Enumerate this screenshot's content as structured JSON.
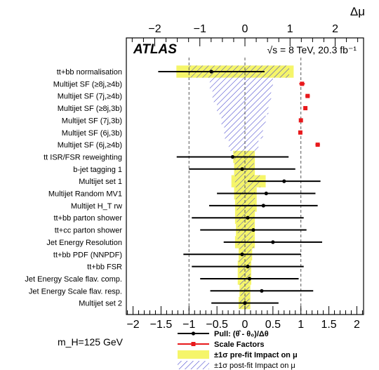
{
  "chart_data": {
    "type": "tornado",
    "experiment": "ATLAS",
    "energy_label": "√s = 8 TeV, 20.3 fb⁻¹",
    "top_axis_label": "Δμ",
    "mass_label": "m_H=125 GeV",
    "x_range": [
      -2.12,
      2.12
    ],
    "x_ticks": [
      -2,
      -1.5,
      -1,
      -0.5,
      0,
      0.5,
      1,
      1.5,
      2
    ],
    "x_tick_labels": [
      "−2",
      "−1.5",
      "−1",
      "−0.5",
      "0",
      "0.5",
      "1",
      "1.5",
      "2"
    ],
    "top_axis_range": [
      -2.63,
      2.63
    ],
    "top_ticks": [
      -2,
      -1,
      0,
      1,
      2
    ],
    "top_tick_labels": [
      "−2",
      "−1",
      "0",
      "1",
      "2"
    ],
    "reference_lines": [
      -1,
      0,
      1
    ],
    "rows": [
      {
        "label": "tt+bb normalisation",
        "type": "pull",
        "pull": -0.6,
        "err": 0.95,
        "prefit": [
          -1.52,
          1.08
        ],
        "postfit": [
          -1.24,
          0.98
        ]
      },
      {
        "label": "Multijet SF (≥8j,≥4b)",
        "type": "sf",
        "sf": 1.02,
        "sf_err": 0.05,
        "prefit": null,
        "postfit": [
          -0.78,
          0.62
        ]
      },
      {
        "label": "Multijet SF (7j,≥4b)",
        "type": "sf",
        "sf": 1.12,
        "sf_err": 0.04,
        "prefit": null,
        "postfit": [
          -0.72,
          0.58
        ]
      },
      {
        "label": "Multijet SF (≥8j,3b)",
        "type": "sf",
        "sf": 1.08,
        "sf_err": 0.03,
        "prefit": null,
        "postfit": [
          -0.62,
          0.52
        ]
      },
      {
        "label": "Multijet SF (7j,3b)",
        "type": "sf",
        "sf": 1.0,
        "sf_err": 0.03,
        "prefit": null,
        "postfit": [
          -0.52,
          0.46
        ]
      },
      {
        "label": "Multijet SF (6j,3b)",
        "type": "sf",
        "sf": 0.99,
        "sf_err": 0.03,
        "prefit": null,
        "postfit": [
          -0.46,
          0.4
        ]
      },
      {
        "label": "Multijet SF (6j,≥4b)",
        "type": "sf",
        "sf": 1.3,
        "sf_err": 0.04,
        "prefit": null,
        "postfit": [
          -0.36,
          0.3
        ]
      },
      {
        "label": "tt ISR/FSR reweighting",
        "type": "pull",
        "pull": -0.22,
        "err": 1.0,
        "prefit": [
          -0.26,
          0.22
        ],
        "postfit": [
          -0.24,
          0.2
        ]
      },
      {
        "label": "b-jet tagging 1",
        "type": "pull",
        "pull": -0.05,
        "err": 0.95,
        "prefit": [
          -0.24,
          0.22
        ],
        "postfit": [
          -0.22,
          0.2
        ]
      },
      {
        "label": "Multijet set 1",
        "type": "pull",
        "pull": 0.7,
        "err": 0.65,
        "prefit": [
          -0.3,
          0.46
        ],
        "postfit": [
          -0.22,
          0.34
        ]
      },
      {
        "label": "Multijet Random MV1",
        "type": "pull",
        "pull": 0.38,
        "err": 0.88,
        "prefit": [
          -0.24,
          0.26
        ],
        "postfit": [
          -0.2,
          0.22
        ]
      },
      {
        "label": "Multijet H_T rw",
        "type": "pull",
        "pull": 0.33,
        "err": 0.97,
        "prefit": [
          -0.22,
          0.26
        ],
        "postfit": [
          -0.18,
          0.22
        ]
      },
      {
        "label": "tt+bb parton shower",
        "type": "pull",
        "pull": 0.05,
        "err": 1.0,
        "prefit": [
          -0.22,
          0.22
        ],
        "postfit": [
          -0.18,
          0.2
        ]
      },
      {
        "label": "tt+cc parton shower",
        "type": "pull",
        "pull": 0.15,
        "err": 0.95,
        "prefit": [
          -0.2,
          0.22
        ],
        "postfit": [
          -0.16,
          0.18
        ]
      },
      {
        "label": "Jet Energy Resolution",
        "type": "pull",
        "pull": 0.5,
        "err": 0.88,
        "prefit": [
          -0.22,
          0.22
        ],
        "postfit": [
          -0.16,
          0.2
        ]
      },
      {
        "label": "tt+bb PDF (NNPDF)",
        "type": "pull",
        "pull": -0.05,
        "err": 1.05,
        "prefit": [
          -0.14,
          0.16
        ],
        "postfit": [
          -0.12,
          0.14
        ]
      },
      {
        "label": "tt+bb FSR",
        "type": "pull",
        "pull": 0.05,
        "err": 1.0,
        "prefit": [
          -0.16,
          0.14
        ],
        "postfit": [
          -0.14,
          0.12
        ]
      },
      {
        "label": "Jet Energy Scale flav. comp.",
        "type": "pull",
        "pull": 0.08,
        "err": 0.88,
        "prefit": [
          -0.16,
          0.14
        ],
        "postfit": [
          -0.12,
          0.12
        ]
      },
      {
        "label": "Jet Energy Scale flav. resp.",
        "type": "pull",
        "pull": 0.3,
        "err": 0.92,
        "prefit": [
          -0.12,
          0.12
        ],
        "postfit": [
          -0.1,
          0.1
        ]
      },
      {
        "label": "Multijet set 2",
        "type": "pull",
        "pull": 0.0,
        "err": 0.6,
        "prefit": [
          -0.14,
          0.12
        ],
        "postfit": [
          -0.12,
          0.1
        ]
      }
    ],
    "legend": [
      {
        "name": "Pull: (θ̂ - θ₀)/Δθ",
        "style": "pull",
        "color": "#000000"
      },
      {
        "name": "Scale Factors",
        "style": "sf",
        "color": "#e8191c"
      },
      {
        "name": "±1σ pre-fit Impact on μ",
        "style": "prefit",
        "color": "#f5f56a"
      },
      {
        "name": "±1σ post-fit Impact on μ",
        "style": "postfit",
        "color": "#3333cc"
      }
    ],
    "legend_placement": "bottom"
  }
}
